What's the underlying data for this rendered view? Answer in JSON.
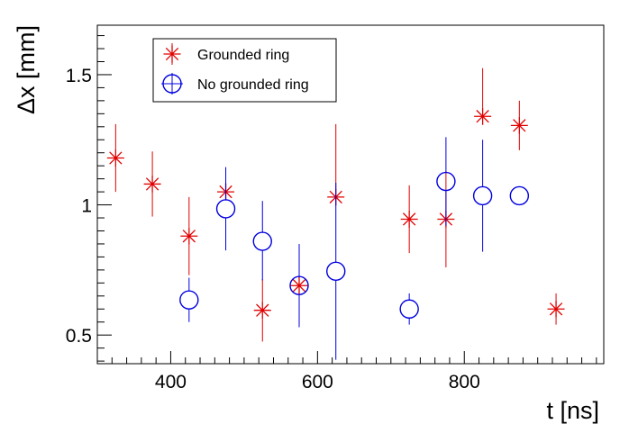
{
  "chart_data": {
    "type": "scatter",
    "xlabel": "t [ns]",
    "ylabel": "Δx [mm]",
    "xlim": [
      300,
      990
    ],
    "ylim": [
      0.39,
      1.69
    ],
    "x_ticks": [
      400,
      600,
      800
    ],
    "x_tick_labels": [
      "400",
      "600",
      "800"
    ],
    "y_ticks": [
      0.5,
      1.0,
      1.5
    ],
    "y_tick_labels": [
      "0.5",
      "1",
      "1.5"
    ],
    "x_minor_step": 20,
    "y_minor_step": 0.05,
    "grid": false,
    "legend_position": "top-left",
    "series": [
      {
        "name": "Grounded ring",
        "marker": "star",
        "color": "#e00000",
        "x": [
          325,
          375,
          425,
          475,
          525,
          575,
          625,
          725,
          775,
          825,
          875,
          925
        ],
        "y": [
          1.18,
          1.08,
          0.88,
          1.05,
          0.595,
          0.69,
          1.03,
          0.945,
          0.945,
          1.34,
          1.305,
          0.6
        ],
        "y_err_low": [
          0.13,
          0.125,
          0.15,
          0.0,
          0.12,
          0.15,
          0.0,
          0.13,
          0.185,
          0.0,
          0.095,
          0.06
        ],
        "y_err_high": [
          0.13,
          0.125,
          0.15,
          0.0,
          0.12,
          0.15,
          0.28,
          0.13,
          0.185,
          0.185,
          0.095,
          0.06
        ]
      },
      {
        "name": "No grounded ring",
        "marker": "circle",
        "color": "#0000e0",
        "x": [
          425,
          475,
          525,
          575,
          625,
          725,
          775,
          825,
          875
        ],
        "y": [
          0.635,
          0.985,
          0.86,
          0.69,
          0.745,
          0.6,
          1.09,
          1.035,
          1.035
        ],
        "y_err_low": [
          0.085,
          0.16,
          0.15,
          0.16,
          0.34,
          0.06,
          0.17,
          0.215,
          0.0
        ],
        "y_err_high": [
          0.085,
          0.16,
          0.155,
          0.16,
          0.34,
          0.06,
          0.17,
          0.215,
          0.0
        ]
      }
    ]
  }
}
